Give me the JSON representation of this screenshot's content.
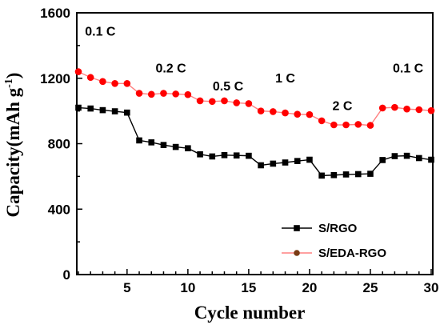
{
  "chart_data": {
    "type": "line",
    "title": "",
    "xlabel": "Cycle number",
    "ylabel_main": "Capacity(mAh g",
    "ylabel_sup": "-1",
    "ylabel_close": ")",
    "xlim": [
      1,
      30
    ],
    "ylim": [
      0,
      1600
    ],
    "x_ticks": [
      5,
      10,
      15,
      20,
      25,
      30
    ],
    "y_ticks": [
      0,
      400,
      800,
      1200,
      1600
    ],
    "grid": false,
    "legend_position": "bottom-right",
    "x": [
      1,
      2,
      3,
      4,
      5,
      6,
      7,
      8,
      9,
      10,
      11,
      12,
      13,
      14,
      15,
      16,
      17,
      18,
      19,
      20,
      21,
      22,
      23,
      24,
      25,
      26,
      27,
      28,
      29,
      30
    ],
    "series": [
      {
        "name": "S/RGO",
        "color": "#000000",
        "marker": "square",
        "values": [
          1020,
          1015,
          1005,
          998,
          990,
          820,
          808,
          792,
          780,
          772,
          735,
          722,
          730,
          728,
          726,
          668,
          678,
          685,
          694,
          702,
          605,
          608,
          612,
          614,
          616,
          700,
          724,
          726,
          712,
          702
        ]
      },
      {
        "name": "S/EDA-RGO",
        "color": "#ff0000",
        "line_color": "#ff8080",
        "marker": "circle",
        "values": [
          1240,
          1205,
          1180,
          1168,
          1168,
          1108,
          1102,
          1108,
          1104,
          1100,
          1062,
          1058,
          1062,
          1050,
          1045,
          1000,
          996,
          988,
          980,
          978,
          940,
          915,
          915,
          918,
          912,
          1018,
          1022,
          1012,
          1008,
          1002
        ]
      }
    ],
    "annotations": [
      {
        "text": "0.1 C",
        "x": 2.8,
        "y": 1460
      },
      {
        "text": "0.2 C",
        "x": 8.6,
        "y": 1235
      },
      {
        "text": "0.5 C",
        "x": 13.3,
        "y": 1125
      },
      {
        "text": "1 C",
        "x": 18.0,
        "y": 1175
      },
      {
        "text": "2 C",
        "x": 22.7,
        "y": 1005
      },
      {
        "text": "0.1 C",
        "x": 28.1,
        "y": 1235
      }
    ]
  }
}
